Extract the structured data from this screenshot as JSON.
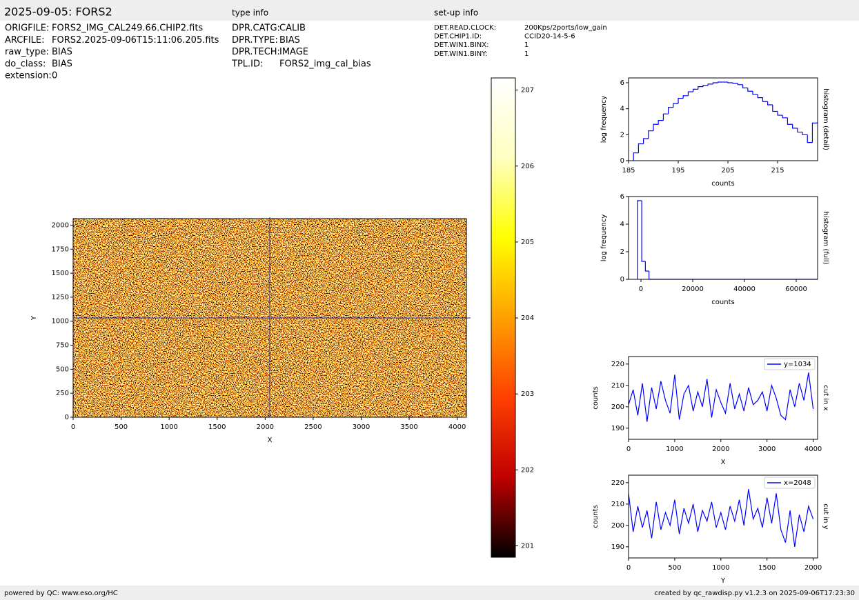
{
  "header": {
    "title": "2025-09-05: FORS2",
    "type_info": "type info",
    "setup_info": "set-up info"
  },
  "info_rows": [
    [
      "ORIGFILE:",
      "FORS2_IMG_CAL249.66.CHIP2.fits"
    ],
    [
      "ARCFILE:",
      "FORS2.2025-09-06T15:11:06.205.fits"
    ],
    [
      "raw_type:",
      "BIAS"
    ],
    [
      "do_class:",
      "BIAS"
    ],
    [
      "extension:",
      "0"
    ]
  ],
  "type_rows": [
    [
      "DPR.CATG:",
      "CALIB"
    ],
    [
      "DPR.TYPE:",
      "BIAS"
    ],
    [
      "DPR.TECH:",
      "IMAGE"
    ],
    [
      "TPL.ID:",
      "FORS2_img_cal_bias"
    ]
  ],
  "setup_rows": [
    [
      "DET.READ.CLOCK:",
      "200Kps/2ports/low_gain"
    ],
    [
      "DET.CHIP1.ID:",
      "CCID20-14-5-6"
    ],
    [
      "DET.WIN1.BINX:",
      "1"
    ],
    [
      "DET.WIN1.BINY:",
      "1"
    ]
  ],
  "footer": {
    "left": "powered by QC: www.eso.org/HC",
    "right": "created by qc_rawdisp.py v1.2.3 on 2025-09-06T17:23:30"
  },
  "chart_data": [
    {
      "type": "image",
      "xlabel": "X",
      "ylabel": "Y",
      "xlim": [
        0,
        4096
      ],
      "ylim": [
        0,
        2068
      ],
      "xticks": [
        0,
        500,
        1000,
        1500,
        2000,
        2500,
        3000,
        3500,
        4000
      ],
      "yticks": [
        0,
        250,
        500,
        750,
        1000,
        1250,
        1500,
        1750,
        2000
      ],
      "crosshair": {
        "x": 2048,
        "y": 1034
      },
      "crosshair_color": "#2a2a9a"
    },
    {
      "type": "colorbar",
      "ylim": [
        200.85,
        207.16
      ],
      "yticks": [
        201,
        202,
        203,
        204,
        205,
        206,
        207
      ],
      "colormap": [
        "#000000",
        "#c00000",
        "#ff4000",
        "#ffa000",
        "#ffff00",
        "#ffffc0",
        "#ffffff"
      ]
    },
    {
      "type": "histogram",
      "xlabel": "counts",
      "ylabel": "log frequency",
      "right_label": "histogram (detail)",
      "xlim": [
        185,
        223.05
      ],
      "ylim": [
        0,
        6.37
      ],
      "xticks": [
        185,
        195,
        205,
        215
      ],
      "yticks": [
        0,
        2,
        4,
        6
      ],
      "color": "#0000ff",
      "bins": [
        186,
        187,
        188,
        189,
        190,
        191,
        192,
        193,
        194,
        195,
        196,
        197,
        198,
        199,
        200,
        201,
        202,
        203,
        204,
        205,
        206,
        207,
        208,
        209,
        210,
        211,
        212,
        213,
        214,
        215,
        216,
        217,
        218,
        219,
        220,
        221,
        222,
        223
      ],
      "values": [
        0.6,
        1.3,
        1.7,
        2.3,
        2.8,
        3.1,
        3.6,
        4.1,
        4.4,
        4.8,
        5.0,
        5.3,
        5.5,
        5.7,
        5.8,
        5.9,
        6.0,
        6.05,
        6.05,
        6.0,
        5.95,
        5.85,
        5.6,
        5.35,
        5.1,
        4.85,
        4.55,
        4.3,
        3.8,
        3.5,
        3.3,
        2.8,
        2.5,
        2.2,
        2.0,
        1.4,
        2.9
      ]
    },
    {
      "type": "histogram",
      "xlabel": "counts",
      "ylabel": "log frequency",
      "right_label": "histogram (full)",
      "xlim": [
        -4800,
        68270
      ],
      "ylim": [
        0,
        6
      ],
      "xticks": [
        0,
        20000,
        40000,
        60000
      ],
      "yticks": [
        0,
        2,
        4,
        6
      ],
      "color": "#0000ff",
      "bins": [
        -1400,
        300,
        1700,
        3100,
        68270
      ],
      "values": [
        5.7,
        1.3,
        0.6,
        0
      ]
    },
    {
      "type": "line",
      "xlabel": "X",
      "ylabel": "counts",
      "right_label": "cut in x",
      "legend": "upper right",
      "xlim": [
        0,
        4096
      ],
      "ylim": [
        184.8,
        223.5
      ],
      "xticks": [
        0,
        1000,
        2000,
        3000,
        4000
      ],
      "yticks": [
        190,
        200,
        210,
        220
      ],
      "x": [
        0,
        100,
        200,
        300,
        400,
        500,
        600,
        700,
        800,
        900,
        1000,
        1100,
        1200,
        1300,
        1400,
        1500,
        1600,
        1700,
        1800,
        1900,
        2000,
        2100,
        2200,
        2300,
        2400,
        2500,
        2600,
        2700,
        2800,
        2900,
        3000,
        3100,
        3200,
        3300,
        3400,
        3500,
        3600,
        3700,
        3800,
        3900,
        4000
      ],
      "series": [
        {
          "name": "y=1034",
          "color": "#0000ff",
          "values": [
            201,
            208,
            196,
            211,
            193,
            209,
            199,
            212,
            203,
            197,
            215,
            194,
            206,
            210,
            198,
            207,
            200,
            213,
            195,
            208,
            202,
            197,
            211,
            199,
            206,
            198,
            209,
            201,
            203,
            207,
            198,
            210,
            204,
            196,
            194,
            208,
            200,
            211,
            203,
            216,
            199
          ]
        }
      ]
    },
    {
      "type": "line",
      "xlabel": "Y",
      "ylabel": "counts",
      "right_label": "cut in y",
      "legend": "upper right",
      "xlim": [
        0,
        2048
      ],
      "ylim": [
        184.8,
        223.5
      ],
      "xticks": [
        0,
        500,
        1000,
        1500,
        2000
      ],
      "yticks": [
        190,
        200,
        210,
        220
      ],
      "x": [
        0,
        50,
        100,
        150,
        200,
        250,
        300,
        350,
        400,
        450,
        500,
        550,
        600,
        650,
        700,
        750,
        800,
        850,
        900,
        950,
        1000,
        1050,
        1100,
        1150,
        1200,
        1250,
        1300,
        1350,
        1400,
        1450,
        1500,
        1550,
        1600,
        1650,
        1700,
        1750,
        1800,
        1850,
        1900,
        1950,
        2000
      ],
      "series": [
        {
          "name": "x=2048",
          "color": "#0000ff",
          "values": [
            215,
            197,
            209,
            199,
            207,
            194,
            211,
            198,
            206,
            200,
            212,
            196,
            208,
            201,
            210,
            197,
            207,
            202,
            211,
            199,
            206,
            198,
            209,
            202,
            212,
            200,
            217,
            203,
            208,
            199,
            213,
            201,
            215,
            198,
            192,
            207,
            190,
            205,
            197,
            209,
            203
          ]
        }
      ]
    }
  ]
}
